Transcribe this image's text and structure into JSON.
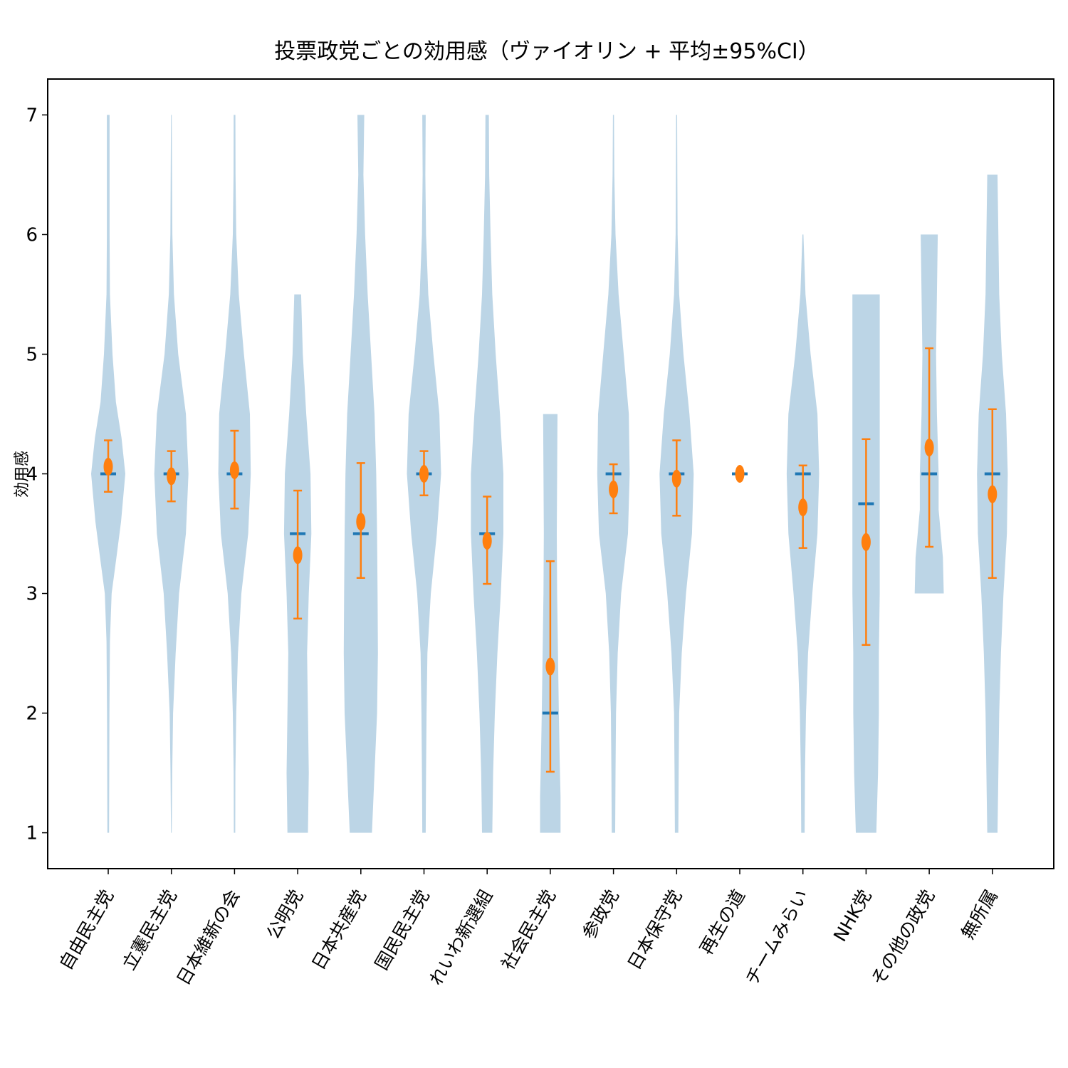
{
  "chart_data": {
    "type": "violin",
    "title": "投票政党ごとの効用感（ヴァイオリン + 平均±95%CI）",
    "xlabel": "",
    "ylabel": "効用感",
    "ylim": [
      0.7,
      7.3
    ],
    "yticks": [
      1,
      2,
      3,
      4,
      5,
      6,
      7
    ],
    "grid": false,
    "colors": {
      "violin": "#bcd5e6",
      "median": "#1f77b4",
      "mean": "#ff7f0e"
    },
    "categories": [
      "自由民主党",
      "立憲民主党",
      "日本維新の会",
      "公明党",
      "日本共産党",
      "国民民主党",
      "れいわ新選組",
      "社会民主党",
      "参政党",
      "日本保守党",
      "再生の道",
      "チームみらい",
      "NHK党",
      "その他の政党",
      "無所属"
    ],
    "series": [
      {
        "name": "自由民主党",
        "min": 1,
        "max": 7,
        "median": 4,
        "mean": 4.06,
        "ci_low": 3.85,
        "ci_high": 4.28,
        "density": [
          [
            1,
            0.05
          ],
          [
            2,
            0.07
          ],
          [
            2.6,
            0.1
          ],
          [
            3,
            0.2
          ],
          [
            3.3,
            0.48
          ],
          [
            3.6,
            0.75
          ],
          [
            4,
            1.0
          ],
          [
            4.3,
            0.78
          ],
          [
            4.6,
            0.45
          ],
          [
            5,
            0.25
          ],
          [
            5.5,
            0.1
          ],
          [
            6,
            0.08
          ],
          [
            7,
            0.08
          ]
        ]
      },
      {
        "name": "立憲民主党",
        "min": 1,
        "max": 7,
        "median": 4,
        "mean": 3.98,
        "ci_low": 3.77,
        "ci_high": 4.19,
        "density": [
          [
            1,
            0.02
          ],
          [
            1.5,
            0.05
          ],
          [
            2,
            0.1
          ],
          [
            2.5,
            0.25
          ],
          [
            3,
            0.45
          ],
          [
            3.5,
            0.85
          ],
          [
            4,
            1.0
          ],
          [
            4.5,
            0.85
          ],
          [
            5,
            0.4
          ],
          [
            5.5,
            0.15
          ],
          [
            6,
            0.06
          ],
          [
            7,
            0.02
          ]
        ]
      },
      {
        "name": "日本維新の会",
        "min": 1,
        "max": 7,
        "median": 4,
        "mean": 4.03,
        "ci_low": 3.71,
        "ci_high": 4.36,
        "density": [
          [
            1,
            0.04
          ],
          [
            1.5,
            0.05
          ],
          [
            2,
            0.1
          ],
          [
            2.5,
            0.2
          ],
          [
            3,
            0.4
          ],
          [
            3.5,
            0.8
          ],
          [
            4,
            0.95
          ],
          [
            4.5,
            0.9
          ],
          [
            5,
            0.55
          ],
          [
            5.5,
            0.25
          ],
          [
            6,
            0.1
          ],
          [
            6.5,
            0.06
          ],
          [
            7,
            0.05
          ]
        ]
      },
      {
        "name": "公明党",
        "min": 1,
        "max": 5.5,
        "median": 3.5,
        "mean": 3.32,
        "ci_low": 2.79,
        "ci_high": 3.86,
        "density": [
          [
            1,
            0.6
          ],
          [
            1.5,
            0.65
          ],
          [
            2,
            0.6
          ],
          [
            2.5,
            0.55
          ],
          [
            3,
            0.65
          ],
          [
            3.5,
            0.8
          ],
          [
            4,
            0.75
          ],
          [
            4.5,
            0.5
          ],
          [
            5,
            0.3
          ],
          [
            5.5,
            0.2
          ]
        ]
      },
      {
        "name": "日本共産党",
        "min": 1,
        "max": 7,
        "median": 3.5,
        "mean": 3.6,
        "ci_low": 3.13,
        "ci_high": 4.09,
        "density": [
          [
            1,
            0.65
          ],
          [
            1.5,
            0.8
          ],
          [
            2,
            0.95
          ],
          [
            2.5,
            1.0
          ],
          [
            3,
            0.98
          ],
          [
            3.5,
            0.95
          ],
          [
            4,
            0.9
          ],
          [
            4.5,
            0.8
          ],
          [
            5,
            0.6
          ],
          [
            5.5,
            0.4
          ],
          [
            6,
            0.25
          ],
          [
            6.5,
            0.15
          ],
          [
            7,
            0.2
          ]
        ]
      },
      {
        "name": "国民民主党",
        "min": 1,
        "max": 7,
        "median": 4,
        "mean": 4.0,
        "ci_low": 3.82,
        "ci_high": 4.19,
        "density": [
          [
            1,
            0.1
          ],
          [
            1.5,
            0.12
          ],
          [
            2,
            0.15
          ],
          [
            2.5,
            0.2
          ],
          [
            3,
            0.4
          ],
          [
            3.5,
            0.75
          ],
          [
            4,
            1.0
          ],
          [
            4.5,
            0.9
          ],
          [
            5,
            0.55
          ],
          [
            5.5,
            0.25
          ],
          [
            6,
            0.12
          ],
          [
            6.5,
            0.08
          ],
          [
            7,
            0.1
          ]
        ]
      },
      {
        "name": "れいわ新選組",
        "min": 1,
        "max": 7,
        "median": 3.5,
        "mean": 3.44,
        "ci_low": 3.08,
        "ci_high": 3.81,
        "density": [
          [
            1,
            0.3
          ],
          [
            1.5,
            0.35
          ],
          [
            2,
            0.45
          ],
          [
            2.5,
            0.6
          ],
          [
            3,
            0.8
          ],
          [
            3.5,
            0.95
          ],
          [
            4,
            0.95
          ],
          [
            4.5,
            0.75
          ],
          [
            5,
            0.5
          ],
          [
            5.5,
            0.3
          ],
          [
            6,
            0.2
          ],
          [
            6.5,
            0.12
          ],
          [
            7,
            0.1
          ]
        ]
      },
      {
        "name": "社会民主党",
        "min": 1,
        "max": 4.5,
        "median": 2,
        "mean": 2.39,
        "ci_low": 1.51,
        "ci_high": 3.27,
        "density": [
          [
            1,
            0.6
          ],
          [
            1.3,
            0.6
          ],
          [
            1.6,
            0.55
          ],
          [
            2,
            0.5
          ],
          [
            2.5,
            0.45
          ],
          [
            3,
            0.4
          ],
          [
            3.5,
            0.38
          ],
          [
            4,
            0.4
          ],
          [
            4.5,
            0.42
          ]
        ]
      },
      {
        "name": "参政党",
        "min": 1,
        "max": 7,
        "median": 4,
        "mean": 3.87,
        "ci_low": 3.67,
        "ci_high": 4.08,
        "density": [
          [
            1,
            0.1
          ],
          [
            1.5,
            0.12
          ],
          [
            2,
            0.15
          ],
          [
            2.5,
            0.25
          ],
          [
            3,
            0.45
          ],
          [
            3.5,
            0.85
          ],
          [
            4,
            0.95
          ],
          [
            4.5,
            0.9
          ],
          [
            5,
            0.6
          ],
          [
            5.5,
            0.3
          ],
          [
            6,
            0.12
          ],
          [
            6.5,
            0.05
          ],
          [
            7,
            0.03
          ]
        ]
      },
      {
        "name": "日本保守党",
        "min": 1,
        "max": 7,
        "median": 4,
        "mean": 3.96,
        "ci_low": 3.65,
        "ci_high": 4.28,
        "density": [
          [
            1,
            0.1
          ],
          [
            1.5,
            0.12
          ],
          [
            2,
            0.15
          ],
          [
            2.5,
            0.3
          ],
          [
            3,
            0.55
          ],
          [
            3.5,
            0.9
          ],
          [
            4,
            1.0
          ],
          [
            4.5,
            0.75
          ],
          [
            5,
            0.4
          ],
          [
            5.5,
            0.15
          ],
          [
            6,
            0.06
          ],
          [
            6.5,
            0.04
          ],
          [
            7,
            0.03
          ]
        ]
      },
      {
        "name": "再生の道",
        "min": 4,
        "max": 4,
        "median": 4,
        "mean": 4.0,
        "ci_low": 4.0,
        "ci_high": 4.0,
        "density": []
      },
      {
        "name": "チームみらい",
        "min": 1,
        "max": 6,
        "median": 4,
        "mean": 3.72,
        "ci_low": 3.38,
        "ci_high": 4.07,
        "density": [
          [
            1,
            0.1
          ],
          [
            1.5,
            0.12
          ],
          [
            2,
            0.18
          ],
          [
            2.5,
            0.3
          ],
          [
            3,
            0.55
          ],
          [
            3.5,
            0.85
          ],
          [
            4,
            0.95
          ],
          [
            4.5,
            0.85
          ],
          [
            5,
            0.45
          ],
          [
            5.5,
            0.15
          ],
          [
            6,
            0.03
          ]
        ]
      },
      {
        "name": "NHK党",
        "min": 1,
        "max": 5.5,
        "median": 3.75,
        "mean": 3.43,
        "ci_low": 2.57,
        "ci_high": 4.29,
        "density": [
          [
            1,
            0.6
          ],
          [
            1.5,
            0.7
          ],
          [
            2,
            0.75
          ],
          [
            2.5,
            0.75
          ],
          [
            3,
            0.8
          ],
          [
            3.5,
            0.8
          ],
          [
            4,
            0.8
          ],
          [
            4.5,
            0.8
          ],
          [
            5,
            0.8
          ],
          [
            5.5,
            0.8
          ]
        ]
      },
      {
        "name": "その他の政党",
        "min": 3,
        "max": 6,
        "median": 4,
        "mean": 4.22,
        "ci_low": 3.39,
        "ci_high": 5.05,
        "density": [
          [
            3,
            0.85
          ],
          [
            3.3,
            0.8
          ],
          [
            3.7,
            0.55
          ],
          [
            4,
            0.55
          ],
          [
            4.5,
            0.45
          ],
          [
            5,
            0.4
          ],
          [
            5.5,
            0.45
          ],
          [
            6,
            0.5
          ]
        ]
      },
      {
        "name": "無所属",
        "min": 1,
        "max": 6.5,
        "median": 4,
        "mean": 3.83,
        "ci_low": 3.13,
        "ci_high": 4.54,
        "density": [
          [
            1,
            0.3
          ],
          [
            1.5,
            0.35
          ],
          [
            2,
            0.4
          ],
          [
            2.5,
            0.5
          ],
          [
            3,
            0.65
          ],
          [
            3.5,
            0.85
          ],
          [
            4,
            0.9
          ],
          [
            4.5,
            0.8
          ],
          [
            5,
            0.55
          ],
          [
            5.5,
            0.4
          ],
          [
            6,
            0.35
          ],
          [
            6.5,
            0.3
          ]
        ]
      }
    ]
  }
}
